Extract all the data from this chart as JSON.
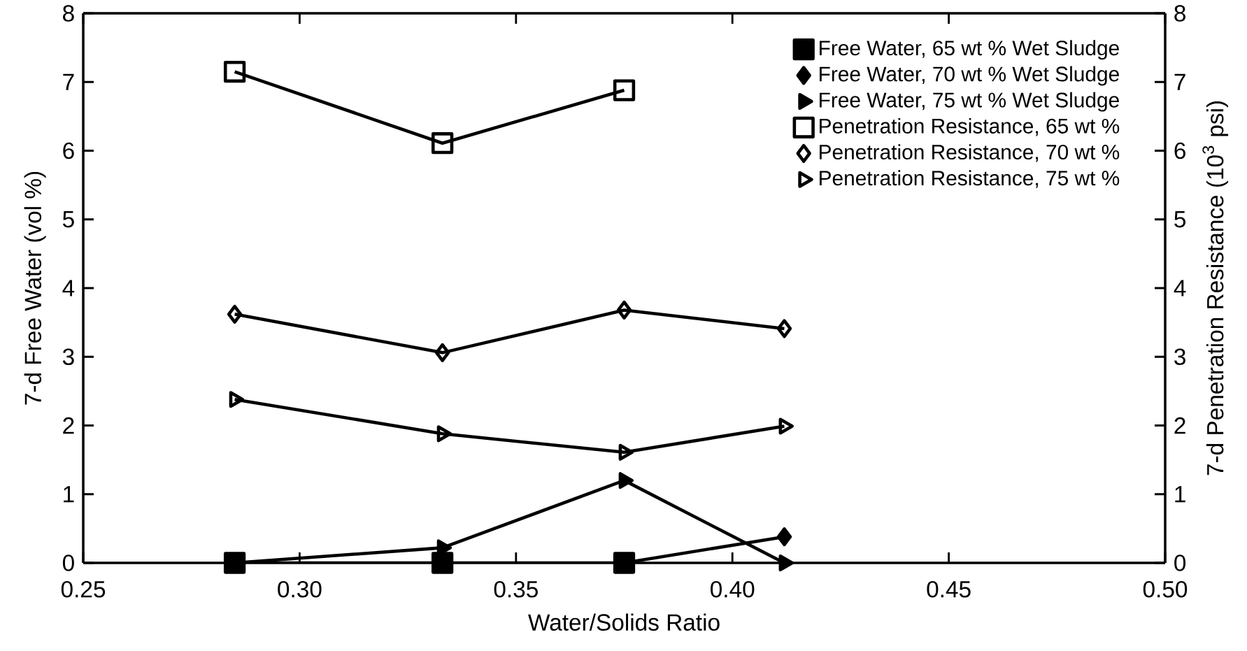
{
  "chart_data": {
    "type": "line",
    "xlabel": "Water/Solids Ratio",
    "ylabel": "7-d Free Water (vol %)",
    "y2label": "7-d Penetration Resistance (10$^{3}$ psi)",
    "xlim": [
      0.25,
      0.5
    ],
    "xticks": [
      {
        "value": 0.25,
        "label": "0.25"
      },
      {
        "value": 0.3,
        "label": "0.30"
      },
      {
        "value": 0.35,
        "label": "0.35"
      },
      {
        "value": 0.4,
        "label": "0.40"
      },
      {
        "value": 0.45,
        "label": "0.45"
      },
      {
        "value": 0.5,
        "label": "0.50"
      }
    ],
    "ylim": [
      0,
      8
    ],
    "yticks": [
      0,
      1,
      2,
      3,
      4,
      5,
      6,
      7,
      8
    ],
    "y2lim": [
      0,
      8
    ],
    "y2ticks": [
      0,
      1,
      2,
      3,
      4,
      5,
      6,
      7,
      8
    ],
    "grid": false,
    "legend": "top right",
    "line_style": "solid",
    "series": [
      {
        "name": "Free Water, 65 wt % Wet Sludge",
        "color": "#000000",
        "marker": "square",
        "x": [
          0.285,
          0.333,
          0.375
        ],
        "values": [
          0,
          0,
          0
        ]
      },
      {
        "name": "Free Water, 70 wt % Wet Sludge",
        "color": "#000000",
        "marker": "diamond",
        "x": [
          0.375,
          0.412
        ],
        "values": [
          0,
          0.38
        ]
      },
      {
        "name": "Free Water, 75 wt % Wet Sludge",
        "color": "#000000",
        "marker": "triangle",
        "x": [
          0.285,
          0.333,
          0.375,
          0.412
        ],
        "values": [
          0,
          0.22,
          1.2,
          0
        ]
      },
      {
        "name": "Penetration Resistance, 65 wt %",
        "color": "#000000",
        "marker": "square",
        "axis": "y2",
        "x": [
          0.285,
          0.333,
          0.375
        ],
        "values": [
          7.15,
          6.11,
          6.88
        ]
      },
      {
        "name": "Penetration Resistance, 70 wt %",
        "color": "#000000",
        "marker": "diamond",
        "axis": "y2",
        "x": [
          0.285,
          0.333,
          0.375,
          0.412
        ],
        "values": [
          3.62,
          3.06,
          3.68,
          3.41
        ]
      },
      {
        "name": "Penetration Resistance, 75 wt %",
        "color": "#000000",
        "marker": "triangle",
        "axis": "y2",
        "x": [
          0.285,
          0.333,
          0.375,
          0.412
        ],
        "values": [
          2.38,
          1.88,
          1.61,
          1.99
        ]
      }
    ]
  }
}
